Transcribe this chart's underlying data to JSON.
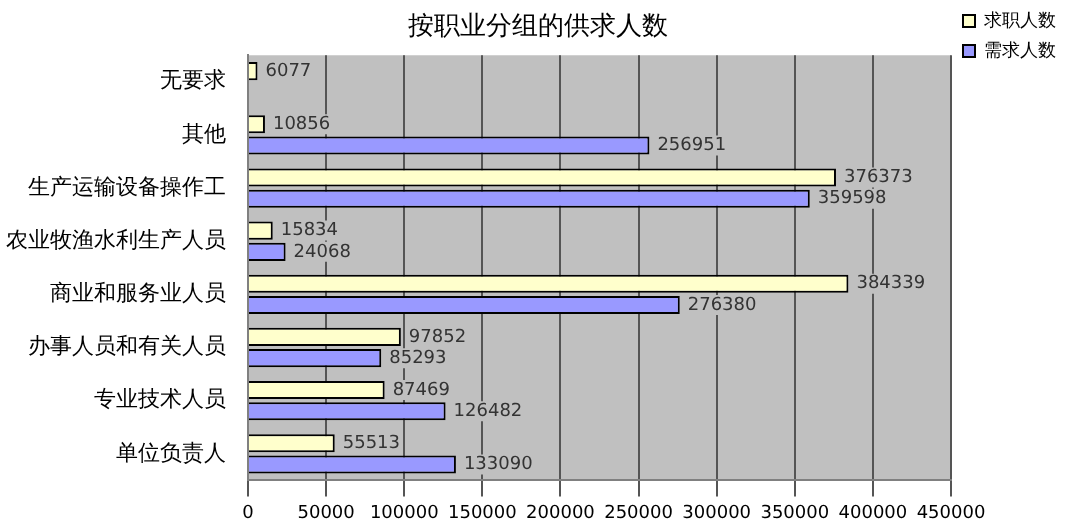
{
  "chart_data": {
    "type": "bar",
    "orientation": "horizontal",
    "title": "按职业分组的供求人数",
    "categories": [
      "无要求",
      "其他",
      "生产运输设备操作工",
      "农业牧渔水利生产人员",
      "商业和服务业人员",
      "办事人员和有关人员",
      "专业技术人员",
      "单位负责人"
    ],
    "series": [
      {
        "name": "求职人数",
        "color": "#ffffcc",
        "values": [
          6077,
          10856,
          376373,
          15834,
          384339,
          97852,
          87469,
          55513
        ]
      },
      {
        "name": "需求人数",
        "color": "#9999ff",
        "values": [
          null,
          256951,
          359598,
          24068,
          276380,
          85293,
          126482,
          133090
        ]
      }
    ],
    "xlim": [
      0,
      450000
    ],
    "xticks": [
      0,
      50000,
      100000,
      150000,
      200000,
      250000,
      300000,
      350000,
      400000,
      450000
    ],
    "grid": "x",
    "legend": "top right",
    "data_labels": true
  }
}
